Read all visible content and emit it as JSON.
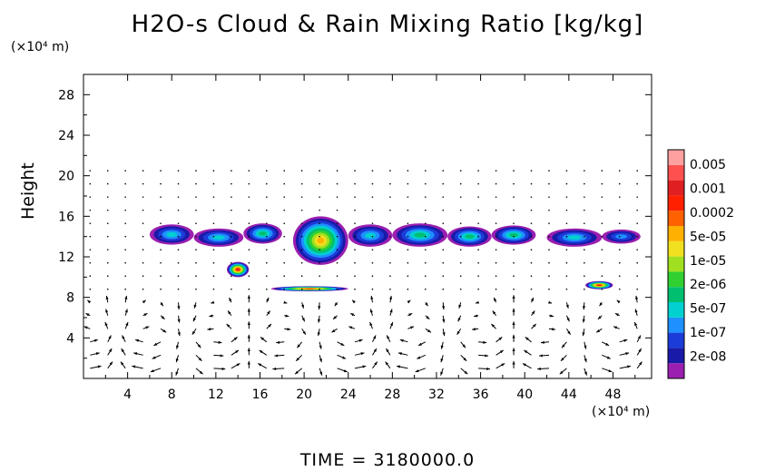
{
  "chart_data": {
    "type": "heatmap",
    "title": "H2O-s Cloud & Rain Mixing Ratio [kg/kg]",
    "ylabel": "Height",
    "x_unit": "(×10⁴ m)",
    "y_unit": "(×10⁴ m)",
    "xlim": [
      0,
      51.5
    ],
    "ylim": [
      0,
      30
    ],
    "x_ticks": [
      "4",
      "8",
      "12",
      "16",
      "20",
      "24",
      "28",
      "32",
      "36",
      "40",
      "44",
      "48"
    ],
    "y_ticks": [
      "4",
      "8",
      "12",
      "16",
      "20",
      "24",
      "28"
    ],
    "colorbar": {
      "labels": [
        "0.005",
        "0.001",
        "0.0002",
        "5e-05",
        "1e-05",
        "2e-06",
        "5e-07",
        "1e-07",
        "2e-08"
      ],
      "colors": [
        "#9b1fb0",
        "#1a1aa8",
        "#1b3cd8",
        "#1e90ff",
        "#00d0d0",
        "#00c070",
        "#30d030",
        "#a0e020",
        "#f0e020",
        "#ffb000",
        "#ff6000",
        "#ff2000",
        "#e02020",
        "#ff5050",
        "#ffa0a0"
      ]
    },
    "cloud_regions": [
      {
        "x": [
          6,
          10
        ],
        "y": [
          13.2,
          15.2
        ],
        "level": 4
      },
      {
        "x": [
          10,
          14.5
        ],
        "y": [
          13.0,
          14.8
        ],
        "level": 4
      },
      {
        "x": [
          14.5,
          18
        ],
        "y": [
          13.3,
          15.3
        ],
        "level": 5
      },
      {
        "x": [
          19,
          24
        ],
        "y": [
          11.2,
          16.0
        ],
        "level": 9
      },
      {
        "x": [
          24,
          28
        ],
        "y": [
          13.0,
          15.2
        ],
        "level": 4
      },
      {
        "x": [
          28,
          33
        ],
        "y": [
          13.0,
          15.3
        ],
        "level": 5
      },
      {
        "x": [
          33,
          37
        ],
        "y": [
          13.0,
          15.0
        ],
        "level": 5
      },
      {
        "x": [
          37,
          41
        ],
        "y": [
          13.2,
          15.1
        ],
        "level": 5
      },
      {
        "x": [
          42,
          47
        ],
        "y": [
          13.0,
          14.8
        ],
        "level": 4
      },
      {
        "x": [
          47,
          50.5
        ],
        "y": [
          13.3,
          14.7
        ],
        "level": 3
      },
      {
        "x": [
          13,
          15
        ],
        "y": [
          10.0,
          11.5
        ],
        "level": 12
      },
      {
        "x": [
          17,
          24
        ],
        "y": [
          8.6,
          9.1
        ],
        "level": 11
      },
      {
        "x": [
          45.5,
          48
        ],
        "y": [
          8.8,
          9.6
        ],
        "level": 12
      }
    ],
    "time_label": "TIME  =  3180000.0"
  }
}
